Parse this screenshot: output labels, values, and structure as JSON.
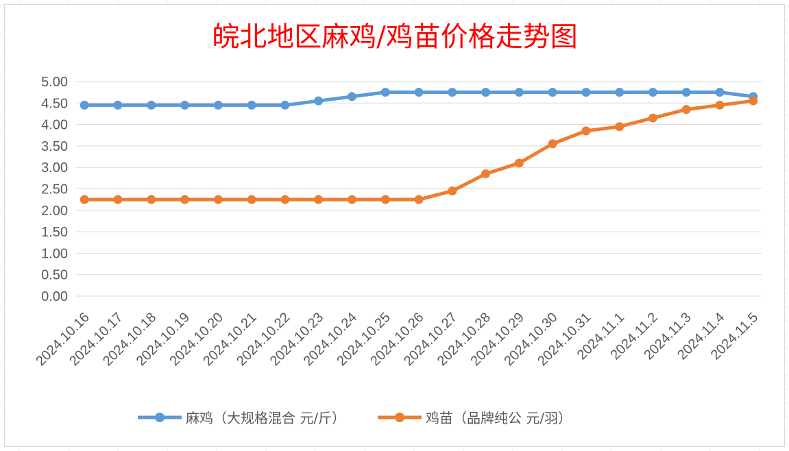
{
  "chart_data": {
    "type": "line",
    "title": "皖北地区麻鸡/鸡苗价格走势图",
    "xlabel": "",
    "ylabel": "",
    "ylim": [
      0,
      5
    ],
    "yticks": [
      "0.00",
      "0.50",
      "1.00",
      "1.50",
      "2.00",
      "2.50",
      "3.00",
      "3.50",
      "4.00",
      "4.50",
      "5.00"
    ],
    "grid": true,
    "legend_position": "bottom",
    "categories": [
      "2024.10.16",
      "2024.10.17",
      "2024.10.18",
      "2024.10.19",
      "2024.10.20",
      "2024.10.21",
      "2024.10.22",
      "2024.10.23",
      "2024.10.24",
      "2024.10.25",
      "2024.10.26",
      "2024.10.27",
      "2024.10.28",
      "2024.10.29",
      "2024.10.30",
      "2024.10.31",
      "2024.11.1",
      "2024.11.2",
      "2024.11.3",
      "2024.11.4",
      "2024.11.5"
    ],
    "series": [
      {
        "name": "麻鸡（大规格混合 元/斤）",
        "color": "#5b9bd5",
        "values": [
          4.45,
          4.45,
          4.45,
          4.45,
          4.45,
          4.45,
          4.45,
          4.55,
          4.65,
          4.75,
          4.75,
          4.75,
          4.75,
          4.75,
          4.75,
          4.75,
          4.75,
          4.75,
          4.75,
          4.75,
          4.65
        ]
      },
      {
        "name": "鸡苗（品牌纯公 元/羽）",
        "color": "#ed7d31",
        "values": [
          2.25,
          2.25,
          2.25,
          2.25,
          2.25,
          2.25,
          2.25,
          2.25,
          2.25,
          2.25,
          2.25,
          2.45,
          2.85,
          3.1,
          3.55,
          3.85,
          3.95,
          4.15,
          4.35,
          4.45,
          4.55
        ]
      }
    ]
  }
}
